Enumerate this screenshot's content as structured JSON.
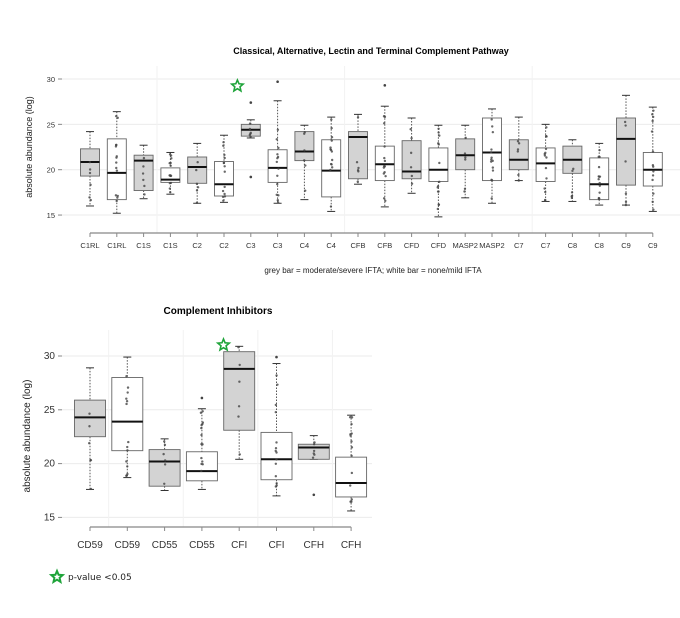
{
  "chart_data": [
    {
      "type": "box",
      "title": "Classical, Alternative, Lectin and Terminal Complement Pathway",
      "xlabel": "grey bar = moderate/severe IFTA; white bar = none/mild IFTA",
      "ylabel": "absolute abundance (log)",
      "ylim": [
        13,
        31
      ],
      "yticks": [
        15,
        20,
        25,
        30
      ],
      "grid": true,
      "categories": [
        "C1RL",
        "C1RL",
        "C1S",
        "C1S",
        "C2",
        "C2",
        "C3",
        "C3",
        "C4",
        "C4",
        "CFB",
        "CFB",
        "CFD",
        "CFD",
        "MASP2",
        "MASP2",
        "C7",
        "C7",
        "C8",
        "C8",
        "C9",
        "C9"
      ],
      "groups": [
        "grey",
        "white",
        "grey",
        "white",
        "grey",
        "white",
        "grey",
        "white",
        "grey",
        "white",
        "grey",
        "white",
        "grey",
        "white",
        "grey",
        "white",
        "grey",
        "white",
        "grey",
        "white",
        "grey",
        "white"
      ],
      "boxes": [
        {
          "low": 16.0,
          "q1": 19.3,
          "median": 20.85,
          "q3": 22.3,
          "high": 24.2,
          "outliers": []
        },
        {
          "low": 15.2,
          "q1": 16.7,
          "median": 19.65,
          "q3": 23.4,
          "high": 26.4,
          "outliers": []
        },
        {
          "low": 16.8,
          "q1": 17.7,
          "median": 21.0,
          "q3": 21.6,
          "high": 22.7,
          "outliers": []
        },
        {
          "low": 17.3,
          "q1": 18.6,
          "median": 18.9,
          "q3": 20.2,
          "high": 21.9,
          "outliers": []
        },
        {
          "low": 16.3,
          "q1": 18.5,
          "median": 20.3,
          "q3": 21.4,
          "high": 22.9,
          "outliers": []
        },
        {
          "low": 16.4,
          "q1": 17.1,
          "median": 18.4,
          "q3": 20.9,
          "high": 23.8,
          "outliers": []
        },
        {
          "low": 23.5,
          "q1": 23.7,
          "median": 24.4,
          "q3": 25.0,
          "high": 25.5,
          "outliers": [
            27.4,
            19.2
          ]
        },
        {
          "low": 16.3,
          "q1": 18.6,
          "median": 20.2,
          "q3": 22.2,
          "high": 27.6,
          "outliers": [
            29.7
          ]
        },
        {
          "low": 16.7,
          "q1": 21.0,
          "median": 22.0,
          "q3": 24.2,
          "high": 24.9,
          "outliers": []
        },
        {
          "low": 15.4,
          "q1": 17.0,
          "median": 19.9,
          "q3": 23.3,
          "high": 25.8,
          "outliers": []
        },
        {
          "low": 18.4,
          "q1": 19.0,
          "median": 23.6,
          "q3": 24.2,
          "high": 26.1,
          "outliers": []
        },
        {
          "low": 15.9,
          "q1": 18.8,
          "median": 20.6,
          "q3": 22.6,
          "high": 27.0,
          "outliers": [
            29.3
          ]
        },
        {
          "low": 17.4,
          "q1": 19.0,
          "median": 19.8,
          "q3": 23.2,
          "high": 25.7,
          "outliers": []
        },
        {
          "low": 14.8,
          "q1": 18.7,
          "median": 20.0,
          "q3": 22.4,
          "high": 24.9,
          "outliers": []
        },
        {
          "low": 16.9,
          "q1": 20.0,
          "median": 21.6,
          "q3": 23.4,
          "high": 24.9,
          "outliers": []
        },
        {
          "low": 16.3,
          "q1": 18.8,
          "median": 21.9,
          "q3": 25.7,
          "high": 26.7,
          "outliers": []
        },
        {
          "low": 18.8,
          "q1": 20.0,
          "median": 21.1,
          "q3": 23.3,
          "high": 25.8,
          "outliers": []
        },
        {
          "low": 16.5,
          "q1": 18.7,
          "median": 20.7,
          "q3": 22.4,
          "high": 25.0,
          "outliers": []
        },
        {
          "low": 16.5,
          "q1": 19.6,
          "median": 21.1,
          "q3": 22.6,
          "high": 23.3,
          "outliers": []
        },
        {
          "low": 16.1,
          "q1": 16.7,
          "median": 18.4,
          "q3": 21.3,
          "high": 22.9,
          "outliers": []
        },
        {
          "low": 16.1,
          "q1": 18.3,
          "median": 23.4,
          "q3": 25.7,
          "high": 28.2,
          "outliers": []
        },
        {
          "low": 15.4,
          "q1": 18.2,
          "median": 20.0,
          "q3": 21.9,
          "high": 26.9,
          "outliers": []
        }
      ],
      "significant_after_index": 6
    },
    {
      "type": "box",
      "title": "Complement Inhibitors",
      "xlabel": "",
      "ylabel": "absolute abundance (log)",
      "ylim": [
        14,
        31
      ],
      "yticks": [
        15,
        20,
        25,
        30
      ],
      "grid": true,
      "categories": [
        "CD59",
        "CD59",
        "CD55",
        "CD55",
        "CFI",
        "CFI",
        "CFH",
        "CFH"
      ],
      "groups": [
        "grey",
        "white",
        "grey",
        "white",
        "grey",
        "white",
        "grey",
        "white"
      ],
      "boxes": [
        {
          "low": 17.6,
          "q1": 22.5,
          "median": 24.3,
          "q3": 25.9,
          "high": 28.9,
          "outliers": []
        },
        {
          "low": 18.7,
          "q1": 21.2,
          "median": 23.9,
          "q3": 28.0,
          "high": 29.9,
          "outliers": []
        },
        {
          "low": 17.5,
          "q1": 17.9,
          "median": 20.2,
          "q3": 21.3,
          "high": 22.3,
          "outliers": []
        },
        {
          "low": 17.6,
          "q1": 18.4,
          "median": 19.3,
          "q3": 21.1,
          "high": 25.1,
          "outliers": [
            26.1
          ]
        },
        {
          "low": 20.4,
          "q1": 23.1,
          "median": 28.8,
          "q3": 30.4,
          "high": 30.9,
          "outliers": []
        },
        {
          "low": 17.0,
          "q1": 18.5,
          "median": 20.4,
          "q3": 22.9,
          "high": 29.3,
          "outliers": [
            29.9
          ]
        },
        {
          "low": 20.4,
          "q1": 20.4,
          "median": 21.5,
          "q3": 21.8,
          "high": 22.6,
          "outliers": [
            17.1
          ]
        },
        {
          "low": 15.6,
          "q1": 16.9,
          "median": 18.2,
          "q3": 20.6,
          "high": 24.5,
          "outliers": []
        }
      ],
      "significant_after_index": 4
    }
  ],
  "colors": {
    "grey_box": "#d3d3d3",
    "white_box": "#ffffff",
    "star": "#1fa43a",
    "grid": "#ebebeb",
    "axis": "#888888"
  },
  "legend": {
    "icon": "star-icon",
    "label": "p-value <0.05"
  }
}
